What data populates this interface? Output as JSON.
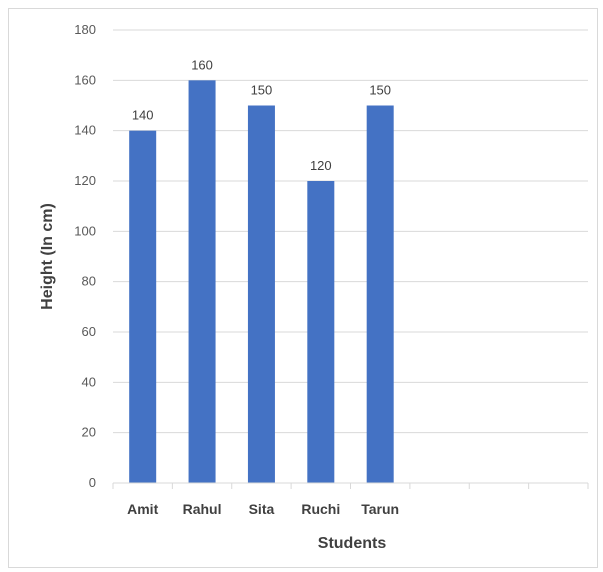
{
  "chart_data": {
    "type": "bar",
    "categories": [
      "Amit",
      "Rahul",
      "Sita",
      "Ruchi",
      "Tarun",
      "",
      "",
      ""
    ],
    "values": [
      140,
      160,
      150,
      120,
      150,
      null,
      null,
      null
    ],
    "data_labels": [
      "140",
      "160",
      "150",
      "120",
      "150",
      "",
      "",
      ""
    ],
    "title": "",
    "xlabel": "Students",
    "ylabel": "Height (In cm)",
    "ylim": [
      0,
      180
    ],
    "yticks": [
      0,
      20,
      40,
      60,
      80,
      100,
      120,
      140,
      160,
      180
    ],
    "grid": true,
    "legend": "none",
    "bar_color": "#4472c4",
    "grid_color": "#d9d9d9",
    "text_color": "#595959"
  }
}
